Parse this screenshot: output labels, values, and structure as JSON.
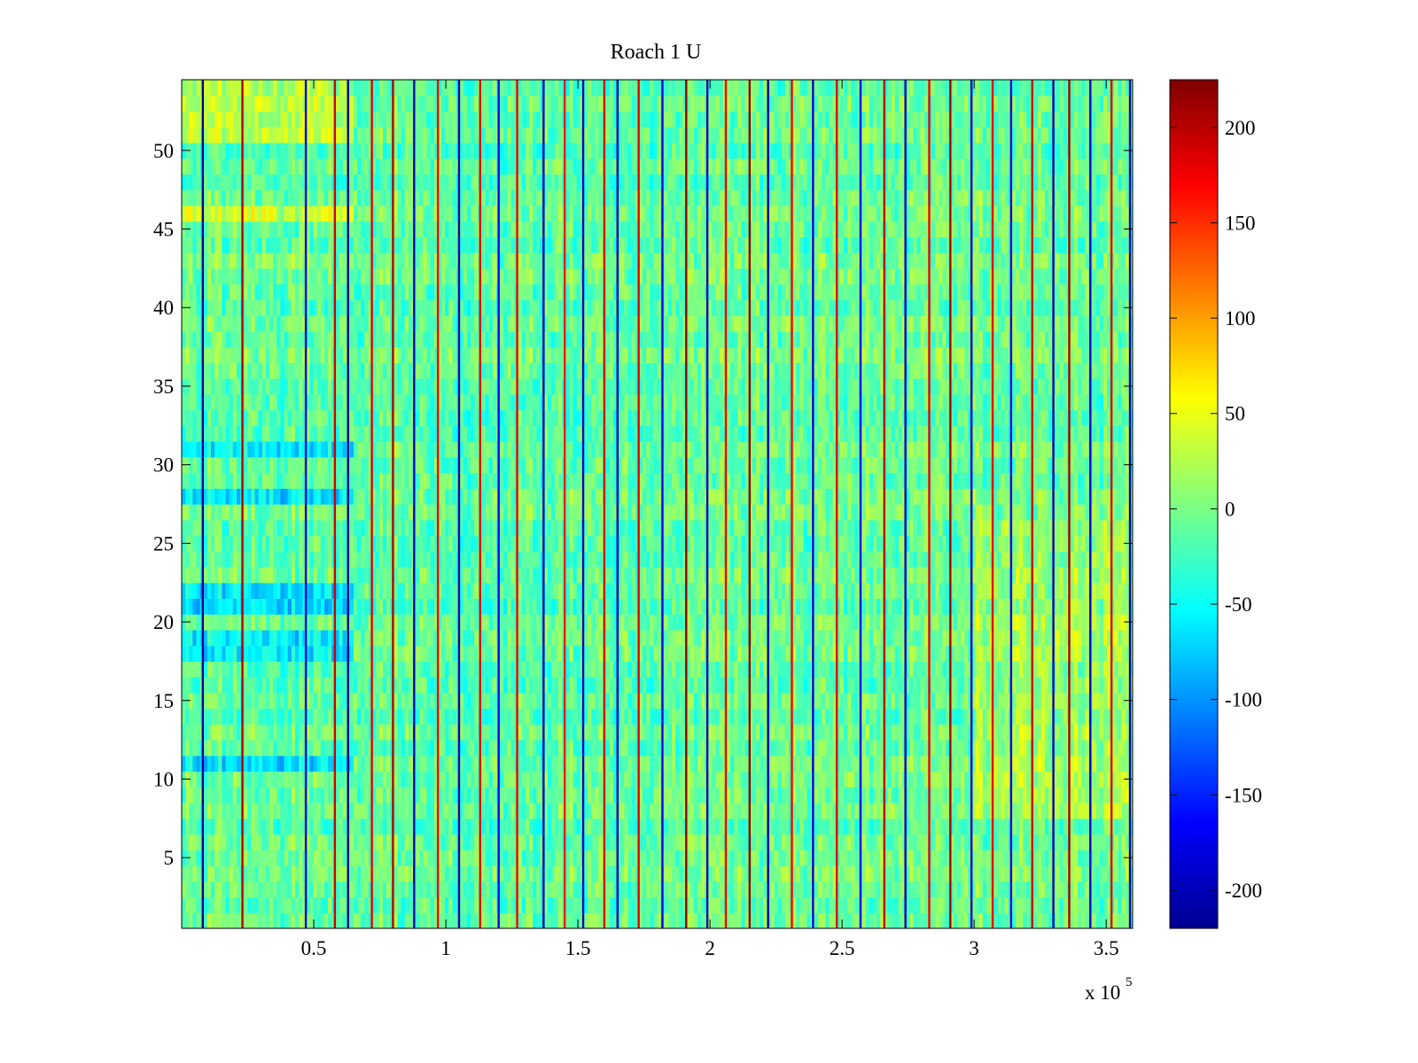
{
  "chart_data": {
    "type": "heatmap",
    "title": "Roach 1 U",
    "xlabel": "",
    "ylabel": "",
    "x_range": [
      0,
      360000
    ],
    "y_range": [
      0.5,
      54.5
    ],
    "xticks": [
      {
        "value": 50000,
        "label": "0.5"
      },
      {
        "value": 100000,
        "label": "1"
      },
      {
        "value": 150000,
        "label": "1.5"
      },
      {
        "value": 200000,
        "label": "2"
      },
      {
        "value": 250000,
        "label": "2.5"
      },
      {
        "value": 300000,
        "label": "3"
      },
      {
        "value": 350000,
        "label": "3.5"
      }
    ],
    "x_exponent": {
      "base": "x 10",
      "power": "5"
    },
    "yticks": [
      {
        "value": 5,
        "label": "5"
      },
      {
        "value": 10,
        "label": "10"
      },
      {
        "value": 15,
        "label": "15"
      },
      {
        "value": 20,
        "label": "20"
      },
      {
        "value": 25,
        "label": "25"
      },
      {
        "value": 30,
        "label": "30"
      },
      {
        "value": 35,
        "label": "35"
      },
      {
        "value": 40,
        "label": "40"
      },
      {
        "value": 45,
        "label": "45"
      },
      {
        "value": 50,
        "label": "50"
      }
    ],
    "colorbar": {
      "colormap": "jet",
      "range": [
        -220,
        225
      ],
      "ticks": [
        {
          "value": 200,
          "label": "200"
        },
        {
          "value": 150,
          "label": "150"
        },
        {
          "value": 100,
          "label": "100"
        },
        {
          "value": 50,
          "label": "50"
        },
        {
          "value": 0,
          "label": "0"
        },
        {
          "value": -50,
          "label": "-50"
        },
        {
          "value": -100,
          "label": "-100"
        },
        {
          "value": -150,
          "label": "-150"
        },
        {
          "value": -200,
          "label": "-200"
        }
      ]
    },
    "rows": 54,
    "value_summary": {
      "typical_range": [
        -60,
        50
      ],
      "early_blue_rows": [
        11,
        18,
        19,
        21,
        22,
        28,
        31
      ],
      "early_warm_rows": [
        46,
        51,
        52,
        53,
        54
      ],
      "late_warm_region": {
        "x_from": 300000,
        "rows": [
          8,
          26
        ]
      }
    },
    "spike_columns": [
      {
        "x": 8000,
        "value": -210
      },
      {
        "x": 23000,
        "value": 200
      },
      {
        "x": 47000,
        "value": -180
      },
      {
        "x": 58000,
        "value": 190
      },
      {
        "x": 63000,
        "value": -215
      },
      {
        "x": 72000,
        "value": 180
      },
      {
        "x": 80000,
        "value": 200
      },
      {
        "x": 88000,
        "value": -190
      },
      {
        "x": 97000,
        "value": 170
      },
      {
        "x": 105000,
        "value": -200
      },
      {
        "x": 113000,
        "value": 185
      },
      {
        "x": 120000,
        "value": -170
      },
      {
        "x": 127000,
        "value": 175
      },
      {
        "x": 137000,
        "value": -190
      },
      {
        "x": 145000,
        "value": 160
      },
      {
        "x": 152000,
        "value": -185
      },
      {
        "x": 160000,
        "value": 190
      },
      {
        "x": 165000,
        "value": -200
      },
      {
        "x": 173000,
        "value": 180
      },
      {
        "x": 182000,
        "value": -170
      },
      {
        "x": 191000,
        "value": 215
      },
      {
        "x": 199000,
        "value": -190
      },
      {
        "x": 206000,
        "value": 175
      },
      {
        "x": 215000,
        "value": 220
      },
      {
        "x": 222000,
        "value": -200
      },
      {
        "x": 231000,
        "value": 170
      },
      {
        "x": 239000,
        "value": -180
      },
      {
        "x": 248000,
        "value": 185
      },
      {
        "x": 257000,
        "value": -175
      },
      {
        "x": 266000,
        "value": 200
      },
      {
        "x": 274000,
        "value": -190
      },
      {
        "x": 283000,
        "value": 175
      },
      {
        "x": 291000,
        "value": 205
      },
      {
        "x": 299000,
        "value": -185
      },
      {
        "x": 307000,
        "value": 180
      },
      {
        "x": 314000,
        "value": -170
      },
      {
        "x": 322000,
        "value": 190
      },
      {
        "x": 330000,
        "value": -195
      },
      {
        "x": 336000,
        "value": 210
      },
      {
        "x": 344000,
        "value": -180
      },
      {
        "x": 352000,
        "value": 185
      },
      {
        "x": 359000,
        "value": -200
      }
    ]
  }
}
